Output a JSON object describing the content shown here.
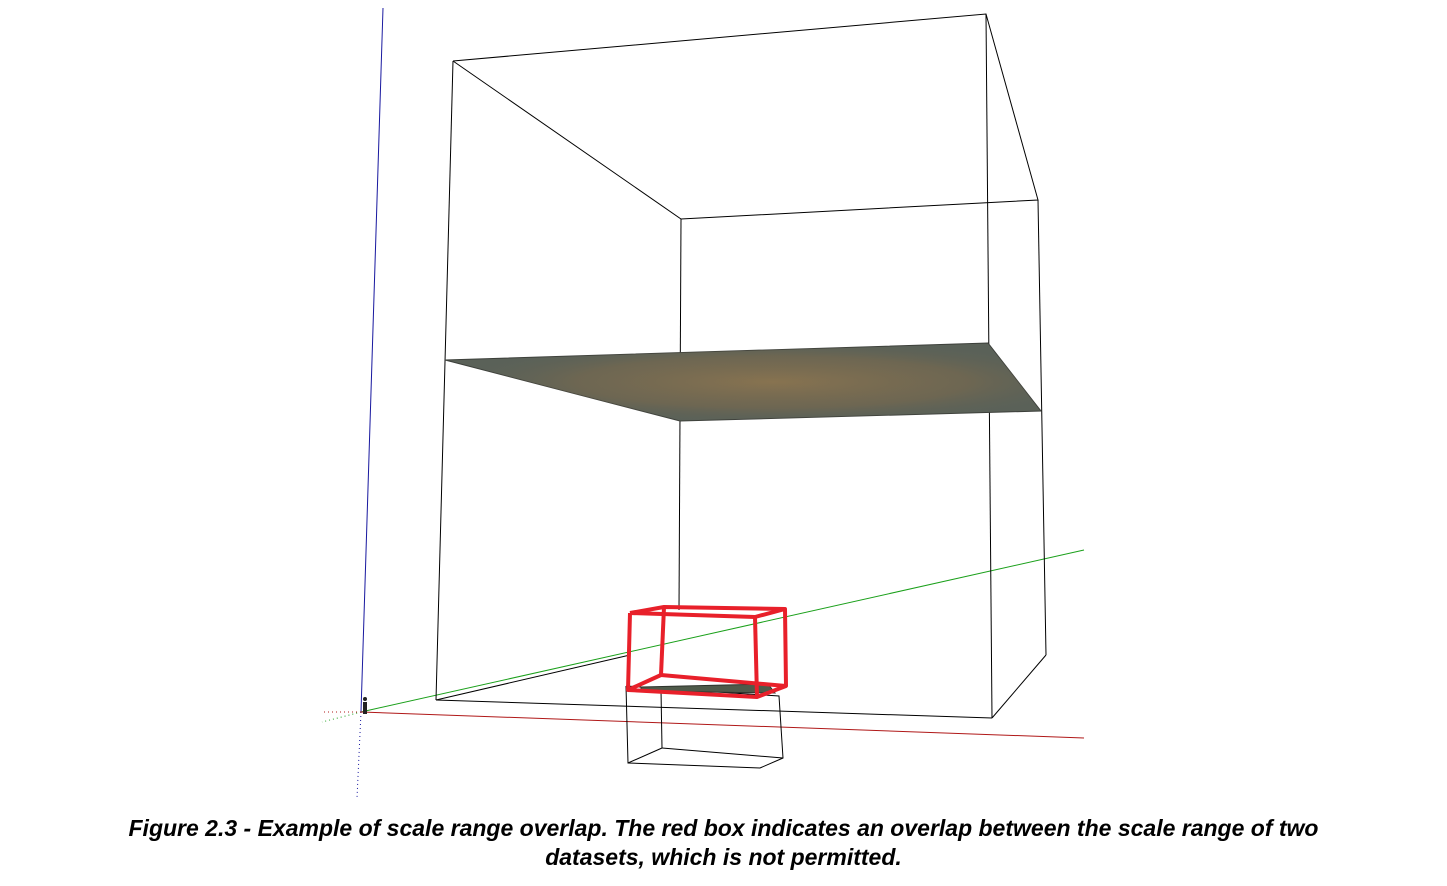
{
  "caption": {
    "line1": "Figure 2.3 - Example of scale range overlap.  The red box indicates an overlap between the scale range of two",
    "line2": "datasets, which is not permitted."
  },
  "colors": {
    "background": "#ffffff",
    "wireframe": "#000000",
    "overlap_box": "#e8202a",
    "axis_z": "#1a1aa0",
    "axis_y": "#1aa01a",
    "axis_x": "#b01818",
    "terrain_base": "#5a6158",
    "terrain_highlight": "#8a7450"
  }
}
